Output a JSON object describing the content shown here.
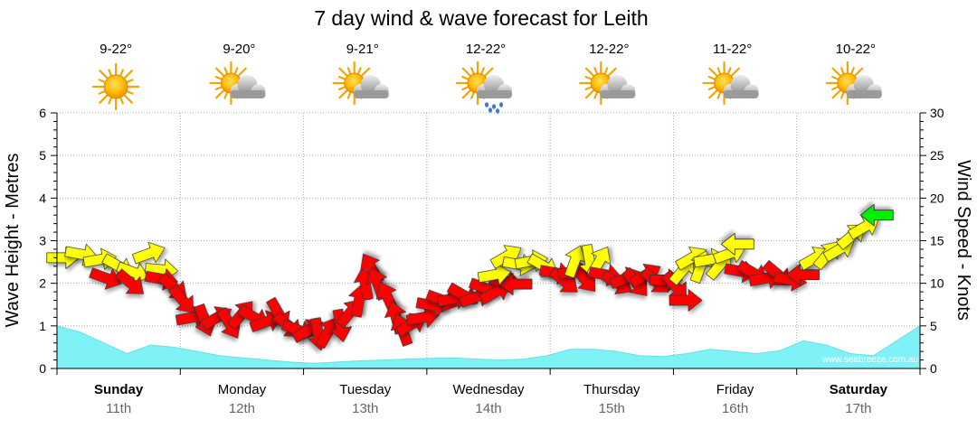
{
  "chart_data": {
    "type": "area",
    "title": "7 day wind & wave forecast for Leith",
    "ylabel_left": "Wave Height - Metres",
    "ylabel_right": "Wind Speed - Knots",
    "ylim_left": [
      0,
      6
    ],
    "ylim_right": [
      0,
      30
    ],
    "yticks_left": [
      "0",
      "1",
      "2",
      "3",
      "4",
      "5",
      "6"
    ],
    "yticks_right": [
      "0",
      "5",
      "10",
      "15",
      "20",
      "25",
      "30"
    ],
    "credit": "www.seabreeze.com.au",
    "days": [
      {
        "name": "Sunday",
        "date": "11th",
        "bold": true,
        "temp": "9-22°",
        "icon": "sun-icon"
      },
      {
        "name": "Monday",
        "date": "12th",
        "bold": false,
        "temp": "9-20°",
        "icon": "partly-cloudy-icon"
      },
      {
        "name": "Tuesday",
        "date": "13th",
        "bold": false,
        "temp": "9-21°",
        "icon": "partly-cloudy-icon"
      },
      {
        "name": "Wednesday",
        "date": "14th",
        "bold": false,
        "temp": "12-22°",
        "icon": "rain-shower-icon"
      },
      {
        "name": "Thursday",
        "date": "15th",
        "bold": false,
        "temp": "12-22°",
        "icon": "partly-cloudy-icon"
      },
      {
        "name": "Friday",
        "date": "16th",
        "bold": false,
        "temp": "11-22°",
        "icon": "partly-cloudy-icon"
      },
      {
        "name": "Saturday",
        "date": "17th",
        "bold": true,
        "temp": "10-22°",
        "icon": "partly-cloudy-icon"
      }
    ],
    "wave_series": {
      "name": "Wave Height",
      "values": [
        1.0,
        0.85,
        0.6,
        0.35,
        0.55,
        0.5,
        0.4,
        0.3,
        0.25,
        0.2,
        0.15,
        0.12,
        0.15,
        0.18,
        0.2,
        0.22,
        0.24,
        0.25,
        0.22,
        0.2,
        0.22,
        0.3,
        0.45,
        0.45,
        0.4,
        0.3,
        0.28,
        0.35,
        0.45,
        0.4,
        0.35,
        0.42,
        0.65,
        0.55,
        0.35,
        0.3,
        0.65,
        1.0
      ]
    },
    "wind_series": {
      "name": "Wind Speed",
      "colors": {
        "light": "#ffff00",
        "moderate": "#ff0000",
        "strong": "#00ee00"
      },
      "points": [
        {
          "t": 0.05,
          "kn": 13.0,
          "dir": 90,
          "c": "light"
        },
        {
          "t": 0.2,
          "kn": 13.4,
          "dir": 100,
          "c": "light"
        },
        {
          "t": 0.35,
          "kn": 12.8,
          "dir": 80,
          "c": "light"
        },
        {
          "t": 0.5,
          "kn": 12.0,
          "dir": 120,
          "c": "light"
        },
        {
          "t": 0.62,
          "kn": 11.3,
          "dir": 110,
          "c": "light"
        },
        {
          "t": 0.75,
          "kn": 13.5,
          "dir": 70,
          "c": "light"
        },
        {
          "t": 0.85,
          "kn": 11.6,
          "dir": 95,
          "c": "light"
        },
        {
          "t": 0.4,
          "kn": 10.6,
          "dir": 110,
          "c": "moderate"
        },
        {
          "t": 0.6,
          "kn": 10.0,
          "dir": 130,
          "c": "moderate"
        },
        {
          "t": 0.85,
          "kn": 10.5,
          "dir": 100,
          "c": "moderate"
        },
        {
          "t": 0.95,
          "kn": 9.5,
          "dir": 130,
          "c": "moderate"
        },
        {
          "t": 1.02,
          "kn": 8.0,
          "dir": 140,
          "c": "moderate"
        },
        {
          "t": 1.1,
          "kn": 6.0,
          "dir": 80,
          "c": "moderate"
        },
        {
          "t": 1.2,
          "kn": 5.6,
          "dir": 160,
          "c": "moderate"
        },
        {
          "t": 1.3,
          "kn": 6.0,
          "dir": 60,
          "c": "moderate"
        },
        {
          "t": 1.4,
          "kn": 5.2,
          "dir": 150,
          "c": "moderate"
        },
        {
          "t": 1.5,
          "kn": 6.4,
          "dir": 40,
          "c": "moderate"
        },
        {
          "t": 1.6,
          "kn": 6.0,
          "dir": 120,
          "c": "moderate"
        },
        {
          "t": 1.7,
          "kn": 5.5,
          "dir": 70,
          "c": "moderate"
        },
        {
          "t": 1.8,
          "kn": 6.4,
          "dir": 150,
          "c": "moderate"
        },
        {
          "t": 1.88,
          "kn": 5.0,
          "dir": 130,
          "c": "moderate"
        },
        {
          "t": 1.96,
          "kn": 4.5,
          "dir": 110,
          "c": "moderate"
        },
        {
          "t": 2.04,
          "kn": 4.5,
          "dir": 60,
          "c": "moderate"
        },
        {
          "t": 2.12,
          "kn": 4.0,
          "dir": 170,
          "c": "moderate"
        },
        {
          "t": 2.2,
          "kn": 4.3,
          "dir": 30,
          "c": "moderate"
        },
        {
          "t": 2.3,
          "kn": 5.0,
          "dir": 170,
          "c": "moderate"
        },
        {
          "t": 2.38,
          "kn": 6.6,
          "dir": 40,
          "c": "moderate"
        },
        {
          "t": 2.45,
          "kn": 8.0,
          "dir": 10,
          "c": "moderate"
        },
        {
          "t": 2.5,
          "kn": 10.0,
          "dir": 350,
          "c": "moderate"
        },
        {
          "t": 2.55,
          "kn": 11.8,
          "dir": 330,
          "c": "moderate"
        },
        {
          "t": 2.6,
          "kn": 10.0,
          "dir": 340,
          "c": "moderate"
        },
        {
          "t": 2.68,
          "kn": 8.4,
          "dir": 335,
          "c": "moderate"
        },
        {
          "t": 2.75,
          "kn": 6.0,
          "dir": 345,
          "c": "moderate"
        },
        {
          "t": 2.8,
          "kn": 4.6,
          "dir": 340,
          "c": "moderate"
        },
        {
          "t": 2.88,
          "kn": 5.2,
          "dir": 60,
          "c": "moderate"
        },
        {
          "t": 2.97,
          "kn": 6.0,
          "dir": 80,
          "c": "moderate"
        },
        {
          "t": 3.05,
          "kn": 7.4,
          "dir": 100,
          "c": "moderate"
        },
        {
          "t": 3.13,
          "kn": 8.0,
          "dir": 110,
          "c": "moderate"
        },
        {
          "t": 3.22,
          "kn": 8.2,
          "dir": 80,
          "c": "moderate"
        },
        {
          "t": 3.3,
          "kn": 8.6,
          "dir": 120,
          "c": "moderate"
        },
        {
          "t": 3.4,
          "kn": 8.4,
          "dir": 70,
          "c": "moderate"
        },
        {
          "t": 3.48,
          "kn": 9.4,
          "dir": 110,
          "c": "moderate"
        },
        {
          "t": 3.56,
          "kn": 9.0,
          "dir": 60,
          "c": "moderate"
        },
        {
          "t": 3.64,
          "kn": 10.2,
          "dir": 100,
          "c": "moderate"
        },
        {
          "t": 3.72,
          "kn": 9.9,
          "dir": 270,
          "c": "moderate"
        },
        {
          "t": 3.55,
          "kn": 11.0,
          "dir": 80,
          "c": "light"
        },
        {
          "t": 3.65,
          "kn": 13.2,
          "dir": 60,
          "c": "light"
        },
        {
          "t": 3.75,
          "kn": 12.2,
          "dir": 100,
          "c": "light"
        },
        {
          "t": 3.85,
          "kn": 12.6,
          "dir": 80,
          "c": "light"
        },
        {
          "t": 3.95,
          "kn": 12.0,
          "dir": 120,
          "c": "light"
        },
        {
          "t": 4.05,
          "kn": 11.2,
          "dir": 100,
          "c": "moderate"
        },
        {
          "t": 4.12,
          "kn": 10.2,
          "dir": 130,
          "c": "moderate"
        },
        {
          "t": 4.2,
          "kn": 11.4,
          "dir": 80,
          "c": "moderate"
        },
        {
          "t": 4.28,
          "kn": 10.5,
          "dir": 140,
          "c": "moderate"
        },
        {
          "t": 4.2,
          "kn": 12.6,
          "dir": 20,
          "c": "light"
        },
        {
          "t": 4.32,
          "kn": 12.6,
          "dir": 170,
          "c": "light"
        },
        {
          "t": 4.4,
          "kn": 12.6,
          "dir": 30,
          "c": "light"
        },
        {
          "t": 4.45,
          "kn": 11.0,
          "dir": 100,
          "c": "moderate"
        },
        {
          "t": 4.55,
          "kn": 10.0,
          "dir": 120,
          "c": "moderate"
        },
        {
          "t": 4.62,
          "kn": 10.6,
          "dir": 70,
          "c": "moderate"
        },
        {
          "t": 4.7,
          "kn": 10.0,
          "dir": 140,
          "c": "moderate"
        },
        {
          "t": 4.78,
          "kn": 11.0,
          "dir": 60,
          "c": "moderate"
        },
        {
          "t": 4.86,
          "kn": 10.2,
          "dir": 130,
          "c": "moderate"
        },
        {
          "t": 4.94,
          "kn": 10.4,
          "dir": 90,
          "c": "moderate"
        },
        {
          "t": 5.02,
          "kn": 9.6,
          "dir": 140,
          "c": "moderate"
        },
        {
          "t": 5.1,
          "kn": 8.0,
          "dir": 90,
          "c": "moderate"
        },
        {
          "t": 5.08,
          "kn": 11.6,
          "dir": 40,
          "c": "light"
        },
        {
          "t": 5.15,
          "kn": 13.0,
          "dir": 60,
          "c": "light"
        },
        {
          "t": 5.22,
          "kn": 12.0,
          "dir": 20,
          "c": "light"
        },
        {
          "t": 5.3,
          "kn": 12.8,
          "dir": 80,
          "c": "light"
        },
        {
          "t": 5.38,
          "kn": 12.2,
          "dir": 40,
          "c": "light"
        },
        {
          "t": 5.46,
          "kn": 13.5,
          "dir": 70,
          "c": "light"
        },
        {
          "t": 5.52,
          "kn": 14.6,
          "dir": 270,
          "c": "light"
        },
        {
          "t": 5.55,
          "kn": 11.4,
          "dir": 100,
          "c": "moderate"
        },
        {
          "t": 5.65,
          "kn": 11.2,
          "dir": 120,
          "c": "moderate"
        },
        {
          "t": 5.75,
          "kn": 10.6,
          "dir": 80,
          "c": "moderate"
        },
        {
          "t": 5.85,
          "kn": 11.0,
          "dir": 130,
          "c": "moderate"
        },
        {
          "t": 5.95,
          "kn": 10.4,
          "dir": 100,
          "c": "moderate"
        },
        {
          "t": 6.05,
          "kn": 11.0,
          "dir": 270,
          "c": "moderate"
        },
        {
          "t": 6.15,
          "kn": 13.0,
          "dir": 60,
          "c": "light"
        },
        {
          "t": 6.25,
          "kn": 13.4,
          "dir": 40,
          "c": "light"
        },
        {
          "t": 6.35,
          "kn": 14.0,
          "dir": 60,
          "c": "light"
        },
        {
          "t": 6.45,
          "kn": 15.6,
          "dir": 50,
          "c": "light"
        },
        {
          "t": 6.55,
          "kn": 16.6,
          "dir": 60,
          "c": "light"
        },
        {
          "t": 6.65,
          "kn": 18.0,
          "dir": 270,
          "c": "strong"
        }
      ]
    }
  }
}
